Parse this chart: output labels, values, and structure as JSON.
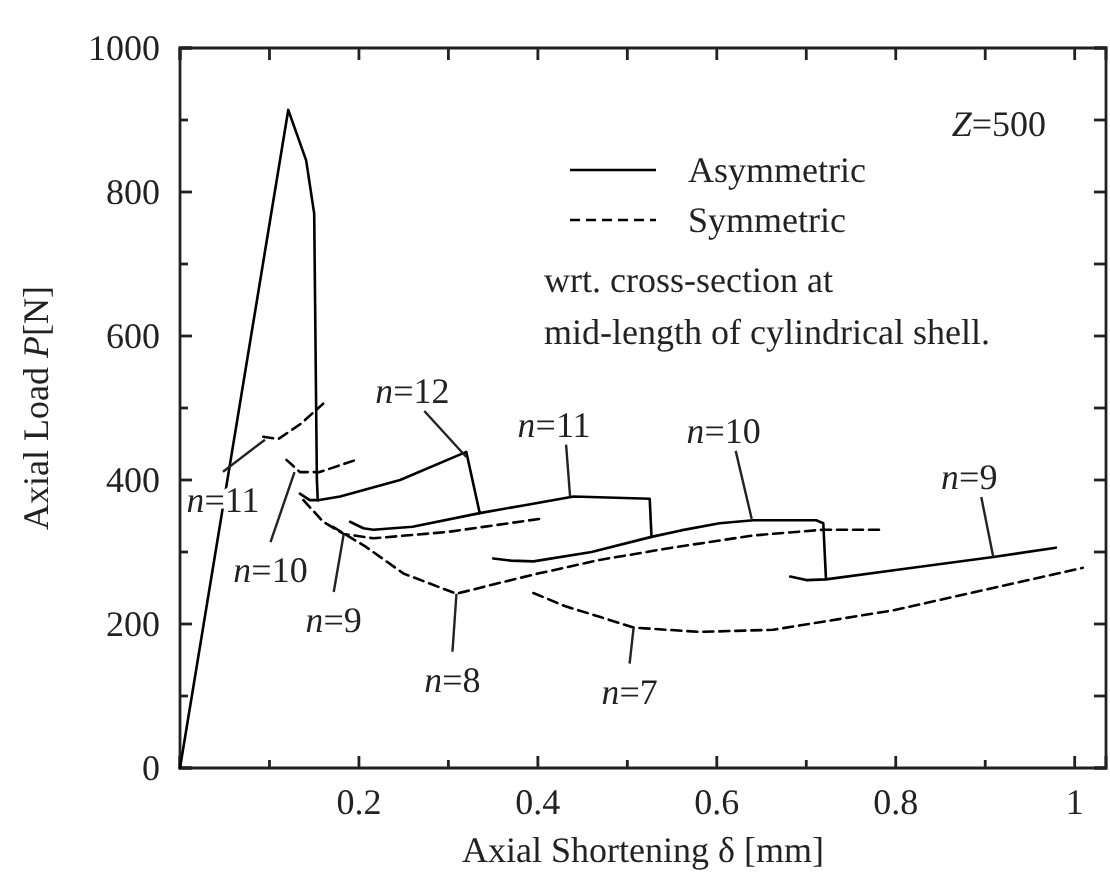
{
  "chart_data": {
    "type": "line",
    "xlabel": "Axial Shortening  δ [mm]",
    "ylabel": "Axial Load  P[N]",
    "xlim": [
      0,
      1.035
    ],
    "ylim": [
      0,
      1000
    ],
    "xticks": [
      {
        "value": 0,
        "label": null
      },
      {
        "value": 0.1,
        "label": null
      },
      0.2,
      {
        "value": 0.3,
        "label": null
      },
      0.4,
      {
        "value": 0.5,
        "label": null
      },
      0.6,
      {
        "value": 0.7,
        "label": null
      },
      0.8,
      {
        "value": 0.9,
        "label": null
      },
      1.0
    ],
    "yticks": [
      0,
      {
        "value": 100,
        "label": null
      },
      200,
      {
        "value": 300,
        "label": null
      },
      400,
      {
        "value": 500,
        "label": null
      },
      600,
      {
        "value": 700,
        "label": null
      },
      800,
      {
        "value": 900,
        "label": null
      },
      1000
    ],
    "legend": "top right",
    "series": [
      {
        "name": "Asymmetric",
        "color": "#000000",
        "line_style": "solid",
        "x": [
          0,
          0.121,
          0.141,
          0.15,
          0.153,
          0.154
        ],
        "values": [
          0,
          914,
          844,
          770,
          400,
          372
        ]
      },
      {
        "name": "Symmetric",
        "color": "#000000",
        "line_style": "dashed",
        "x": [
          0.171,
          0.208,
          0.25,
          0.309,
          0.35,
          0.4,
          0.469,
          0.55,
          0.641,
          0.719,
          0.786
        ],
        "values": [
          335,
          307,
          270,
          242,
          255,
          270,
          289,
          306,
          323,
          331,
          331
        ]
      },
      {
        "color": "#000000",
        "line_style": "solid",
        "x": [
          0.134,
          0.145,
          0.154,
          0.179,
          0.246,
          0.32,
          0.335,
          0.39,
          0.44,
          0.525,
          0.527,
          0.56,
          0.603,
          0.641,
          0.711,
          0.719,
          0.722
        ],
        "values": [
          381,
          372,
          372,
          377,
          400,
          439,
          354,
          366,
          377,
          374,
          321,
          330,
          340,
          344,
          344,
          340,
          263
        ]
      },
      {
        "color": "#000000",
        "line_style": "solid",
        "x": [
          0.19,
          0.205,
          0.216,
          0.26,
          0.335
        ],
        "values": [
          342,
          333,
          331,
          335,
          354
        ]
      },
      {
        "color": "#000000",
        "line_style": "solid",
        "x": [
          0.35,
          0.37,
          0.395,
          0.46,
          0.527
        ],
        "values": [
          291,
          288,
          287,
          300,
          321
        ]
      },
      {
        "color": "#000000",
        "line_style": "solid",
        "x": [
          0.682,
          0.7,
          0.722,
          0.8,
          0.909,
          0.979
        ],
        "values": [
          266,
          261,
          262,
          275,
          293,
          306
        ]
      },
      {
        "color": "#000000",
        "line_style": "dashed",
        "x": [
          0.093,
          0.11,
          0.135,
          0.16
        ],
        "values": [
          460,
          457,
          478,
          506
        ]
      },
      {
        "color": "#000000",
        "line_style": "dashed",
        "x": [
          0.119,
          0.134,
          0.156,
          0.197
        ],
        "values": [
          428,
          411,
          411,
          428
        ]
      },
      {
        "color": "#000000",
        "line_style": "dashed",
        "x": [
          0.138,
          0.16,
          0.183,
          0.216,
          0.3,
          0.402
        ],
        "values": [
          372,
          342,
          325,
          319,
          328,
          346
        ]
      },
      {
        "color": "#000000",
        "line_style": "dashed",
        "x": [
          0.395,
          0.43,
          0.469,
          0.507,
          0.581,
          0.663,
          0.797,
          0.916,
          1.009
        ],
        "values": [
          243,
          225,
          210,
          195,
          189,
          192,
          219,
          252,
          278
        ]
      }
    ],
    "annotations": [
      {
        "text": "n=12",
        "x": 0.32,
        "y": 432
      },
      {
        "text": "n=11",
        "x": 0.436,
        "y": 377
      },
      {
        "text": "n=10",
        "x": 0.639,
        "y": 346
      },
      {
        "text": "n=9",
        "x": 0.909,
        "y": 293
      },
      {
        "text": "n=11",
        "x": 0.095,
        "y": 456
      },
      {
        "text": "n=10",
        "x": 0.128,
        "y": 411
      },
      {
        "text": "n=9",
        "x": 0.183,
        "y": 325
      },
      {
        "text": "n=8",
        "x": 0.309,
        "y": 242
      },
      {
        "text": "n=7",
        "x": 0.507,
        "y": 195
      },
      "Z=500",
      "wrt. cross-section at",
      "mid-length of cylindrical shell."
    ]
  }
}
